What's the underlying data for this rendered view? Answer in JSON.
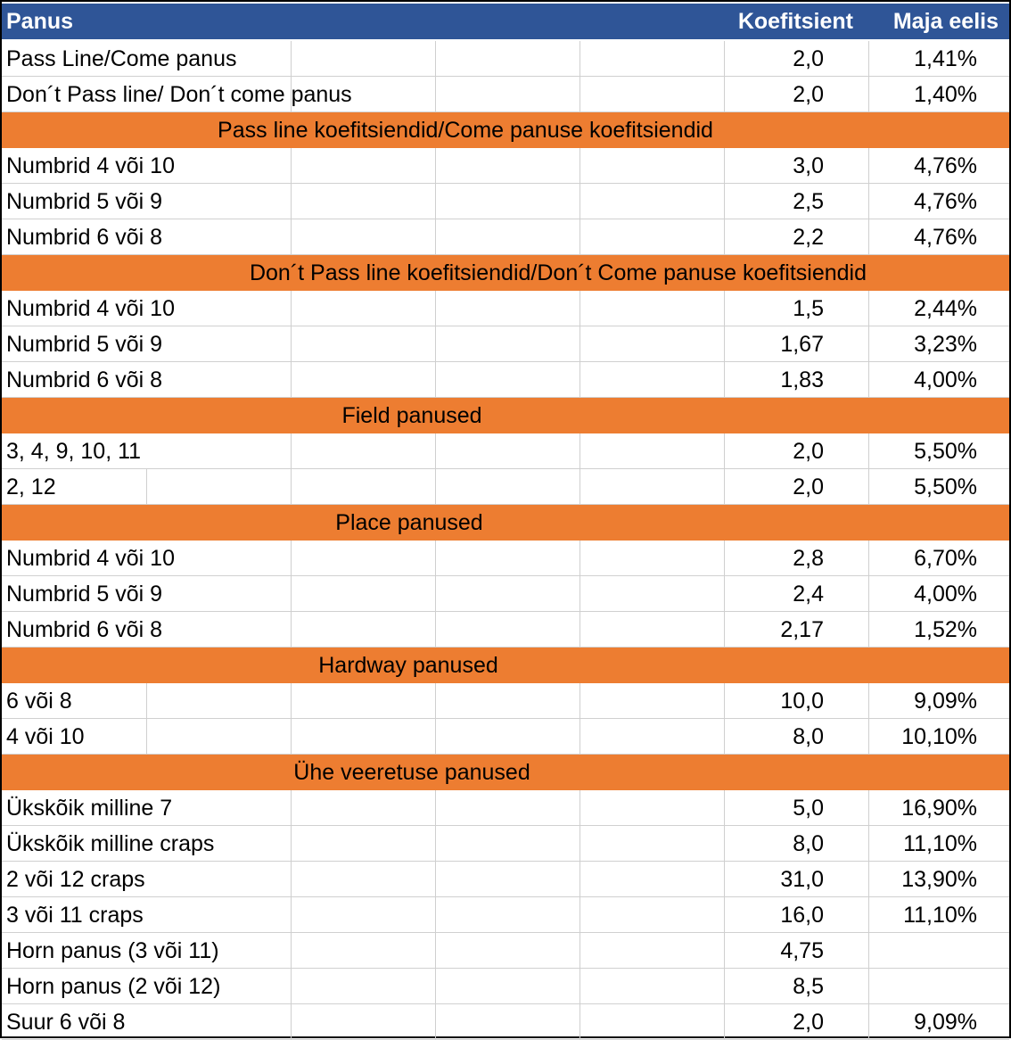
{
  "table": {
    "headers": {
      "bet": "Panus",
      "odds": "Koefitsient",
      "edge": "Maja eelis"
    },
    "rows": [
      {
        "type": "data",
        "label": "Pass Line/Come panus",
        "odds": "2,0",
        "edge": "1,41%"
      },
      {
        "type": "data",
        "label": "Don´t Pass line/ Don´t come panus",
        "odds": "2,0",
        "edge": "1,40%"
      },
      {
        "type": "section",
        "label": "Pass line koefitsiendid/Come panuse koefitsiendid"
      },
      {
        "type": "data",
        "label": "Numbrid 4 või 10",
        "odds": "3,0",
        "edge": "4,76%"
      },
      {
        "type": "data",
        "label": "Numbrid 5 või 9",
        "odds": "2,5",
        "edge": "4,76%"
      },
      {
        "type": "data",
        "label": "Numbrid 6 või 8",
        "odds": "2,2",
        "edge": "4,76%"
      },
      {
        "type": "section",
        "label": "Don´t Pass line koefitsiendid/Don´t Come panuse koefitsiendid"
      },
      {
        "type": "data",
        "label": "Numbrid 4 või 10",
        "odds": "1,5",
        "edge": "2,44%"
      },
      {
        "type": "data",
        "label": "Numbrid 5 või 9",
        "odds": "1,67",
        "edge": "3,23%"
      },
      {
        "type": "data",
        "label": "Numbrid 6 või 8",
        "odds": "1,83",
        "edge": "4,00%"
      },
      {
        "type": "section",
        "label": "Field panused"
      },
      {
        "type": "data",
        "label": "3, 4, 9, 10, 11",
        "odds": "2,0",
        "edge": "5,50%"
      },
      {
        "type": "data",
        "label": "2, 12",
        "odds": "2,0",
        "edge": "5,50%"
      },
      {
        "type": "section",
        "label": "Place panused"
      },
      {
        "type": "data",
        "label": "Numbrid 4 või 10",
        "odds": "2,8",
        "edge": "6,70%"
      },
      {
        "type": "data",
        "label": "Numbrid 5 või 9",
        "odds": "2,4",
        "edge": "4,00%"
      },
      {
        "type": "data",
        "label": "Numbrid 6 või 8",
        "odds": "2,17",
        "edge": "1,52%"
      },
      {
        "type": "section",
        "label": "Hardway panused"
      },
      {
        "type": "data",
        "label": "6 või 8",
        "odds": "10,0",
        "edge": "9,09%"
      },
      {
        "type": "data",
        "label": "4 või 10",
        "odds": "8,0",
        "edge": "10,10%"
      },
      {
        "type": "section",
        "label": "Ühe veeretuse panused"
      },
      {
        "type": "data",
        "label": "Ükskõik milline 7",
        "odds": "5,0",
        "edge": "16,90%"
      },
      {
        "type": "data",
        "label": "Ükskõik milline craps",
        "odds": "8,0",
        "edge": "11,10%"
      },
      {
        "type": "data",
        "label": "2 või 12 craps",
        "odds": "31,0",
        "edge": "13,90%"
      },
      {
        "type": "data",
        "label": "3 või 11 craps",
        "odds": "16,0",
        "edge": "11,10%"
      },
      {
        "type": "data",
        "label": "Horn panus (3 või 11)",
        "odds": "4,75",
        "edge": ""
      },
      {
        "type": "data",
        "label": "Horn panus (2 või 12)",
        "odds": "8,5",
        "edge": ""
      },
      {
        "type": "data",
        "label": "Suur 6 või 8",
        "odds": "2,0",
        "edge": "9,09%"
      }
    ]
  },
  "colors": {
    "header": "#2f5597",
    "section": "#ed7d31"
  }
}
